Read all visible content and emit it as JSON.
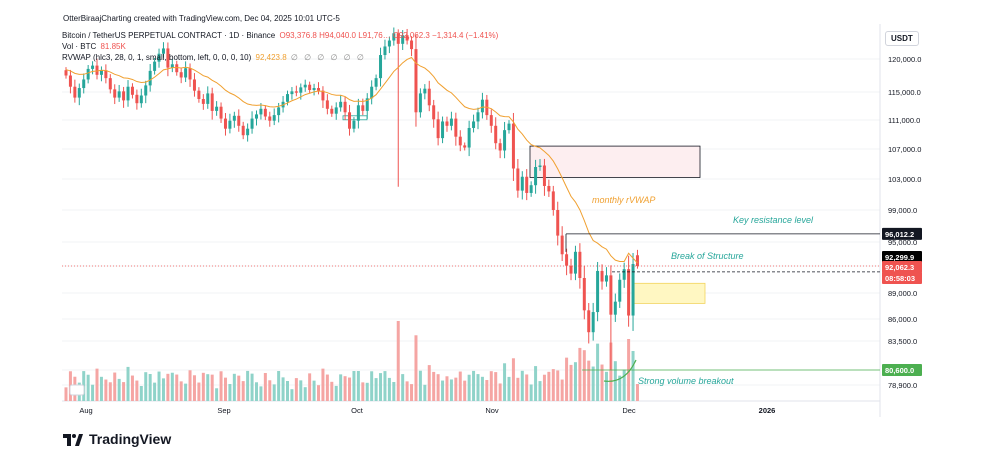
{
  "header": {
    "creator": "OtterBiraajCharting created with TradingView.com, Dec 04, 2025 10:01 UTC-5",
    "symbol": "Bitcoin / TetherUS PERPETUAL CONTRACT · 1D · Binance",
    "ohlc": "O93,376.8 H94,040.0 L91,76… C92,062.3 −1,314.4 (−1.41%)",
    "vol_label": "Vol · BTC",
    "vol_value": "81.85K",
    "rvwap_label": "RVWAP (hlc3, 28, 0, 1, small, bottom, left, 0, 0, 0, 10)",
    "rvwap_value": "92,423.8",
    "rvwap_dots": "∅ ∅ ∅ ∅ ∅ ∅",
    "currency": "USDT"
  },
  "colors": {
    "up": "#26a69a",
    "down": "#ef5350",
    "vol_up": "#8fd3c9",
    "vol_down": "#f5a5a3",
    "vwap": "#f0a030",
    "annotation": "#26a69a",
    "resistance_box_fill": "#fdeef0",
    "demand_box_fill": "#fff7c2",
    "price_tag": "#ef5350",
    "last_tag": "#000000",
    "support_tag": "#4caf50"
  },
  "chart_data": {
    "type": "candlestick",
    "title": "Bitcoin / TetherUS PERPETUAL CONTRACT · 1D · Binance",
    "y_axis": {
      "ticks": [
        78900,
        80600,
        83500,
        86000,
        89000,
        92062.3,
        95000,
        99000,
        103000,
        107000,
        111000,
        115000,
        120000
      ],
      "tick_labels": [
        "78,900.0",
        "80,600.0",
        "83,500.0",
        "86,000.0",
        "89,000.0",
        "92,062.3",
        "95,000.0",
        "99,000.0",
        "103,000.0",
        "107,000.0",
        "111,000.0",
        "115,000.0",
        "120,000.0"
      ],
      "range": [
        78000,
        124500
      ]
    },
    "x_axis": {
      "labels": [
        "Aug",
        "Sep",
        "Oct",
        "Nov",
        "Dec",
        "2026"
      ]
    },
    "price_tags": {
      "resistance": "96,012.2",
      "last": "92,299.9",
      "current": "92,062.3",
      "countdown": "08:58:03",
      "support": "80,600.0"
    },
    "levels": {
      "resistance": 96012.2,
      "current": 92062.3,
      "support": 80600
    },
    "closes": [
      117500,
      115800,
      114200,
      115600,
      116900,
      118500,
      119000,
      117600,
      118300,
      117100,
      115400,
      114200,
      115100,
      113800,
      115800,
      114600,
      113400,
      114500,
      116000,
      118200,
      119600,
      120800,
      121600,
      118700,
      119200,
      118000,
      117200,
      118600,
      116900,
      115200,
      114000,
      113300,
      114800,
      112300,
      112900,
      111200,
      109800,
      110900,
      111600,
      110200,
      108900,
      109800,
      111200,
      111800,
      112600,
      111500,
      110900,
      111700,
      112800,
      113600,
      114700,
      115100,
      114900,
      115700,
      116100,
      115300,
      115600,
      115200,
      113800,
      112600,
      111900,
      112800,
      113600,
      112100,
      109800,
      110900,
      113100,
      112300,
      114100,
      115800,
      117100,
      120600,
      121900,
      122800,
      123900,
      122300,
      123600,
      122800,
      121500,
      112100,
      114800,
      115500,
      113100,
      111100,
      108500,
      110800,
      110200,
      111200,
      108700,
      107500,
      107200,
      109900,
      110800,
      112100,
      113900,
      111700,
      110200,
      107800,
      106800,
      109600,
      110500,
      104400,
      101500,
      103300,
      101200,
      102200,
      104600,
      104800,
      102100,
      101400,
      99000,
      95800,
      93500,
      92100,
      91200,
      93800,
      90700,
      87000,
      84500,
      86800,
      91500,
      90300,
      91000,
      86500,
      88000,
      90500,
      91700,
      86400,
      92300,
      92062.3
    ],
    "volume_note": "daily volume histogram, Vol · BTC 81.85K",
    "series": [
      {
        "name": "monthly rVWAP"
      }
    ],
    "annotations": {
      "vwap_label": "monthly rVWAP",
      "resistance_label": "Key resistance level",
      "bos_label": "Break of Structure",
      "volume_label": "Strong volume breakout"
    },
    "vwap_value": 92423.8
  },
  "branding": {
    "logo_text": "TradingView"
  }
}
